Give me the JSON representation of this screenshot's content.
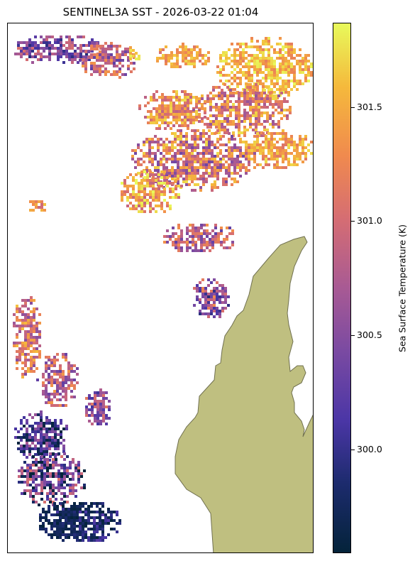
{
  "title": "SENTINEL3A SST - 2026-03-22 01:04",
  "colorbar": {
    "label": "Sea Surface Temperature (K)",
    "range": [
      299.55,
      301.87
    ],
    "colormap": "thermal",
    "ticks": [
      {
        "label": "300.0",
        "value": 300.0
      },
      {
        "label": "300.5",
        "value": 300.5
      },
      {
        "label": "301.0",
        "value": 301.0
      },
      {
        "label": "301.5",
        "value": 301.5
      }
    ]
  },
  "map": {
    "land_color": "#bfbf80",
    "no_data_color": "#ffffff"
  }
}
